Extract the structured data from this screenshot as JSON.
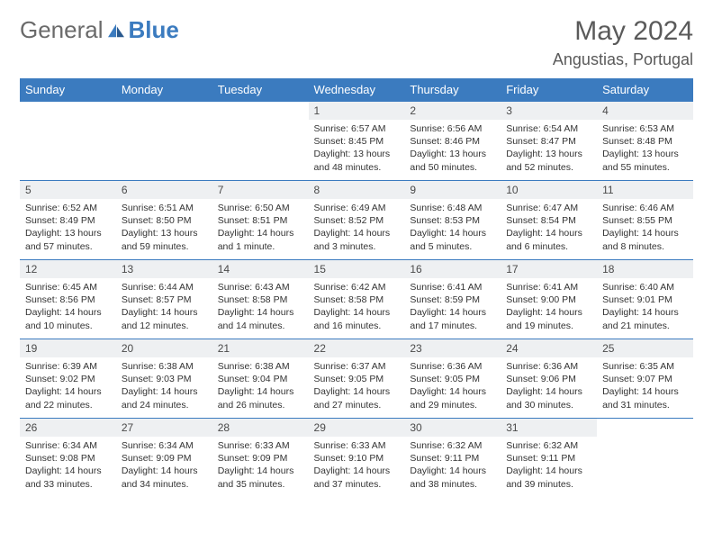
{
  "brand": {
    "part1": "General",
    "part2": "Blue"
  },
  "title": "May 2024",
  "location": "Angustias, Portugal",
  "colors": {
    "header_bg": "#3b7bbf",
    "header_text": "#ffffff",
    "border": "#3b7bbf",
    "daynum_bg": "#eef0f2",
    "text": "#333333",
    "brand_gray": "#6a6a6a",
    "brand_blue": "#3b7bbf"
  },
  "weekdays": [
    "Sunday",
    "Monday",
    "Tuesday",
    "Wednesday",
    "Thursday",
    "Friday",
    "Saturday"
  ],
  "weeks": [
    [
      {
        "n": "",
        "sunrise": "",
        "sunset": "",
        "daylight": ""
      },
      {
        "n": "",
        "sunrise": "",
        "sunset": "",
        "daylight": ""
      },
      {
        "n": "",
        "sunrise": "",
        "sunset": "",
        "daylight": ""
      },
      {
        "n": "1",
        "sunrise": "Sunrise: 6:57 AM",
        "sunset": "Sunset: 8:45 PM",
        "daylight": "Daylight: 13 hours and 48 minutes."
      },
      {
        "n": "2",
        "sunrise": "Sunrise: 6:56 AM",
        "sunset": "Sunset: 8:46 PM",
        "daylight": "Daylight: 13 hours and 50 minutes."
      },
      {
        "n": "3",
        "sunrise": "Sunrise: 6:54 AM",
        "sunset": "Sunset: 8:47 PM",
        "daylight": "Daylight: 13 hours and 52 minutes."
      },
      {
        "n": "4",
        "sunrise": "Sunrise: 6:53 AM",
        "sunset": "Sunset: 8:48 PM",
        "daylight": "Daylight: 13 hours and 55 minutes."
      }
    ],
    [
      {
        "n": "5",
        "sunrise": "Sunrise: 6:52 AM",
        "sunset": "Sunset: 8:49 PM",
        "daylight": "Daylight: 13 hours and 57 minutes."
      },
      {
        "n": "6",
        "sunrise": "Sunrise: 6:51 AM",
        "sunset": "Sunset: 8:50 PM",
        "daylight": "Daylight: 13 hours and 59 minutes."
      },
      {
        "n": "7",
        "sunrise": "Sunrise: 6:50 AM",
        "sunset": "Sunset: 8:51 PM",
        "daylight": "Daylight: 14 hours and 1 minute."
      },
      {
        "n": "8",
        "sunrise": "Sunrise: 6:49 AM",
        "sunset": "Sunset: 8:52 PM",
        "daylight": "Daylight: 14 hours and 3 minutes."
      },
      {
        "n": "9",
        "sunrise": "Sunrise: 6:48 AM",
        "sunset": "Sunset: 8:53 PM",
        "daylight": "Daylight: 14 hours and 5 minutes."
      },
      {
        "n": "10",
        "sunrise": "Sunrise: 6:47 AM",
        "sunset": "Sunset: 8:54 PM",
        "daylight": "Daylight: 14 hours and 6 minutes."
      },
      {
        "n": "11",
        "sunrise": "Sunrise: 6:46 AM",
        "sunset": "Sunset: 8:55 PM",
        "daylight": "Daylight: 14 hours and 8 minutes."
      }
    ],
    [
      {
        "n": "12",
        "sunrise": "Sunrise: 6:45 AM",
        "sunset": "Sunset: 8:56 PM",
        "daylight": "Daylight: 14 hours and 10 minutes."
      },
      {
        "n": "13",
        "sunrise": "Sunrise: 6:44 AM",
        "sunset": "Sunset: 8:57 PM",
        "daylight": "Daylight: 14 hours and 12 minutes."
      },
      {
        "n": "14",
        "sunrise": "Sunrise: 6:43 AM",
        "sunset": "Sunset: 8:58 PM",
        "daylight": "Daylight: 14 hours and 14 minutes."
      },
      {
        "n": "15",
        "sunrise": "Sunrise: 6:42 AM",
        "sunset": "Sunset: 8:58 PM",
        "daylight": "Daylight: 14 hours and 16 minutes."
      },
      {
        "n": "16",
        "sunrise": "Sunrise: 6:41 AM",
        "sunset": "Sunset: 8:59 PM",
        "daylight": "Daylight: 14 hours and 17 minutes."
      },
      {
        "n": "17",
        "sunrise": "Sunrise: 6:41 AM",
        "sunset": "Sunset: 9:00 PM",
        "daylight": "Daylight: 14 hours and 19 minutes."
      },
      {
        "n": "18",
        "sunrise": "Sunrise: 6:40 AM",
        "sunset": "Sunset: 9:01 PM",
        "daylight": "Daylight: 14 hours and 21 minutes."
      }
    ],
    [
      {
        "n": "19",
        "sunrise": "Sunrise: 6:39 AM",
        "sunset": "Sunset: 9:02 PM",
        "daylight": "Daylight: 14 hours and 22 minutes."
      },
      {
        "n": "20",
        "sunrise": "Sunrise: 6:38 AM",
        "sunset": "Sunset: 9:03 PM",
        "daylight": "Daylight: 14 hours and 24 minutes."
      },
      {
        "n": "21",
        "sunrise": "Sunrise: 6:38 AM",
        "sunset": "Sunset: 9:04 PM",
        "daylight": "Daylight: 14 hours and 26 minutes."
      },
      {
        "n": "22",
        "sunrise": "Sunrise: 6:37 AM",
        "sunset": "Sunset: 9:05 PM",
        "daylight": "Daylight: 14 hours and 27 minutes."
      },
      {
        "n": "23",
        "sunrise": "Sunrise: 6:36 AM",
        "sunset": "Sunset: 9:05 PM",
        "daylight": "Daylight: 14 hours and 29 minutes."
      },
      {
        "n": "24",
        "sunrise": "Sunrise: 6:36 AM",
        "sunset": "Sunset: 9:06 PM",
        "daylight": "Daylight: 14 hours and 30 minutes."
      },
      {
        "n": "25",
        "sunrise": "Sunrise: 6:35 AM",
        "sunset": "Sunset: 9:07 PM",
        "daylight": "Daylight: 14 hours and 31 minutes."
      }
    ],
    [
      {
        "n": "26",
        "sunrise": "Sunrise: 6:34 AM",
        "sunset": "Sunset: 9:08 PM",
        "daylight": "Daylight: 14 hours and 33 minutes."
      },
      {
        "n": "27",
        "sunrise": "Sunrise: 6:34 AM",
        "sunset": "Sunset: 9:09 PM",
        "daylight": "Daylight: 14 hours and 34 minutes."
      },
      {
        "n": "28",
        "sunrise": "Sunrise: 6:33 AM",
        "sunset": "Sunset: 9:09 PM",
        "daylight": "Daylight: 14 hours and 35 minutes."
      },
      {
        "n": "29",
        "sunrise": "Sunrise: 6:33 AM",
        "sunset": "Sunset: 9:10 PM",
        "daylight": "Daylight: 14 hours and 37 minutes."
      },
      {
        "n": "30",
        "sunrise": "Sunrise: 6:32 AM",
        "sunset": "Sunset: 9:11 PM",
        "daylight": "Daylight: 14 hours and 38 minutes."
      },
      {
        "n": "31",
        "sunrise": "Sunrise: 6:32 AM",
        "sunset": "Sunset: 9:11 PM",
        "daylight": "Daylight: 14 hours and 39 minutes."
      },
      {
        "n": "",
        "sunrise": "",
        "sunset": "",
        "daylight": ""
      }
    ]
  ]
}
